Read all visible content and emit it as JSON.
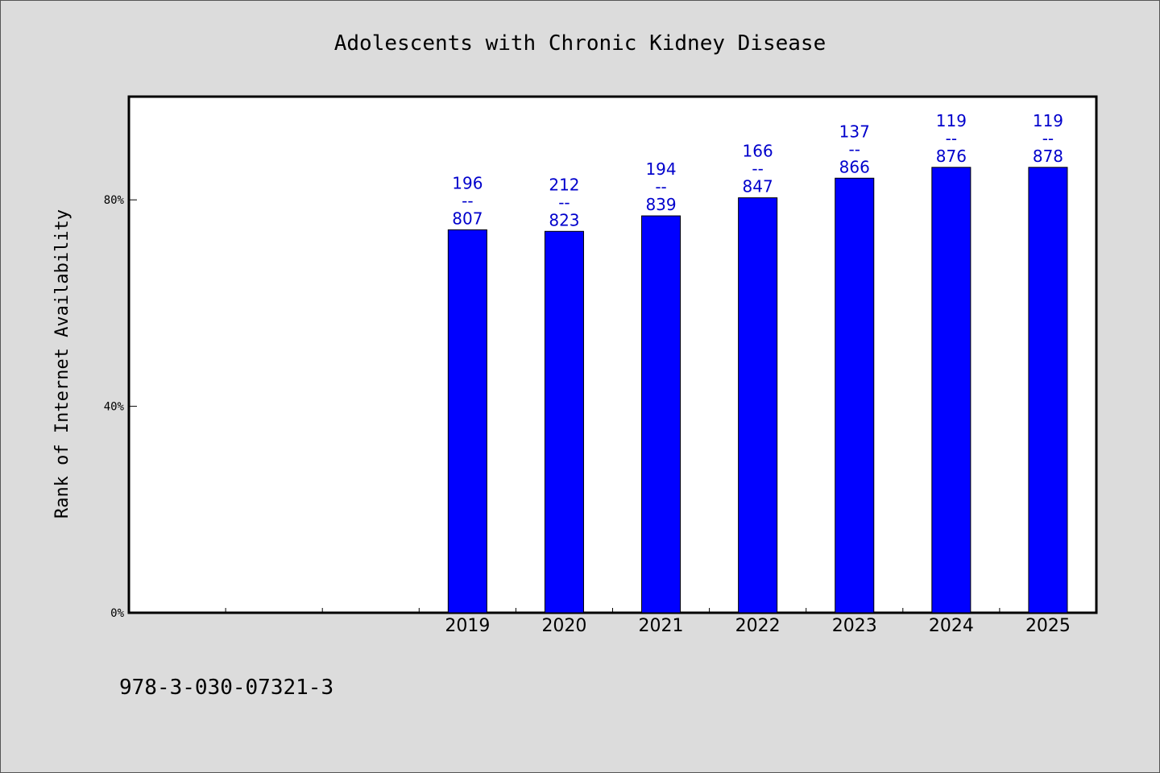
{
  "chart_data": {
    "type": "bar",
    "title": "Adolescents with Chronic Kidney Disease",
    "ylabel": "Rank of Internet Availability",
    "xlabel": "",
    "ylim": [
      0,
      100
    ],
    "y_ticks": [
      {
        "value": 0,
        "label": "0%"
      },
      {
        "value": 40,
        "label": "40%"
      },
      {
        "value": 80,
        "label": "80%"
      }
    ],
    "x_slots": 10,
    "categories": [
      "2019",
      "2020",
      "2021",
      "2022",
      "2023",
      "2024",
      "2025"
    ],
    "values": [
      74.2,
      73.9,
      76.9,
      80.4,
      84.2,
      86.3,
      86.3
    ],
    "data_labels": [
      {
        "top": "196",
        "sep": "--",
        "bottom": "807"
      },
      {
        "top": "212",
        "sep": "--",
        "bottom": "823"
      },
      {
        "top": "194",
        "sep": "--",
        "bottom": "839"
      },
      {
        "top": "166",
        "sep": "--",
        "bottom": "847"
      },
      {
        "top": "137",
        "sep": "--",
        "bottom": "866"
      },
      {
        "top": "119",
        "sep": "--",
        "bottom": "876"
      },
      {
        "top": "119",
        "sep": "--",
        "bottom": "878"
      }
    ],
    "bar_color": "#0000ff",
    "label_color": "#0000cc",
    "grid": false,
    "legend": "none"
  },
  "footer": {
    "isbn": "978-3-030-07321-3"
  }
}
